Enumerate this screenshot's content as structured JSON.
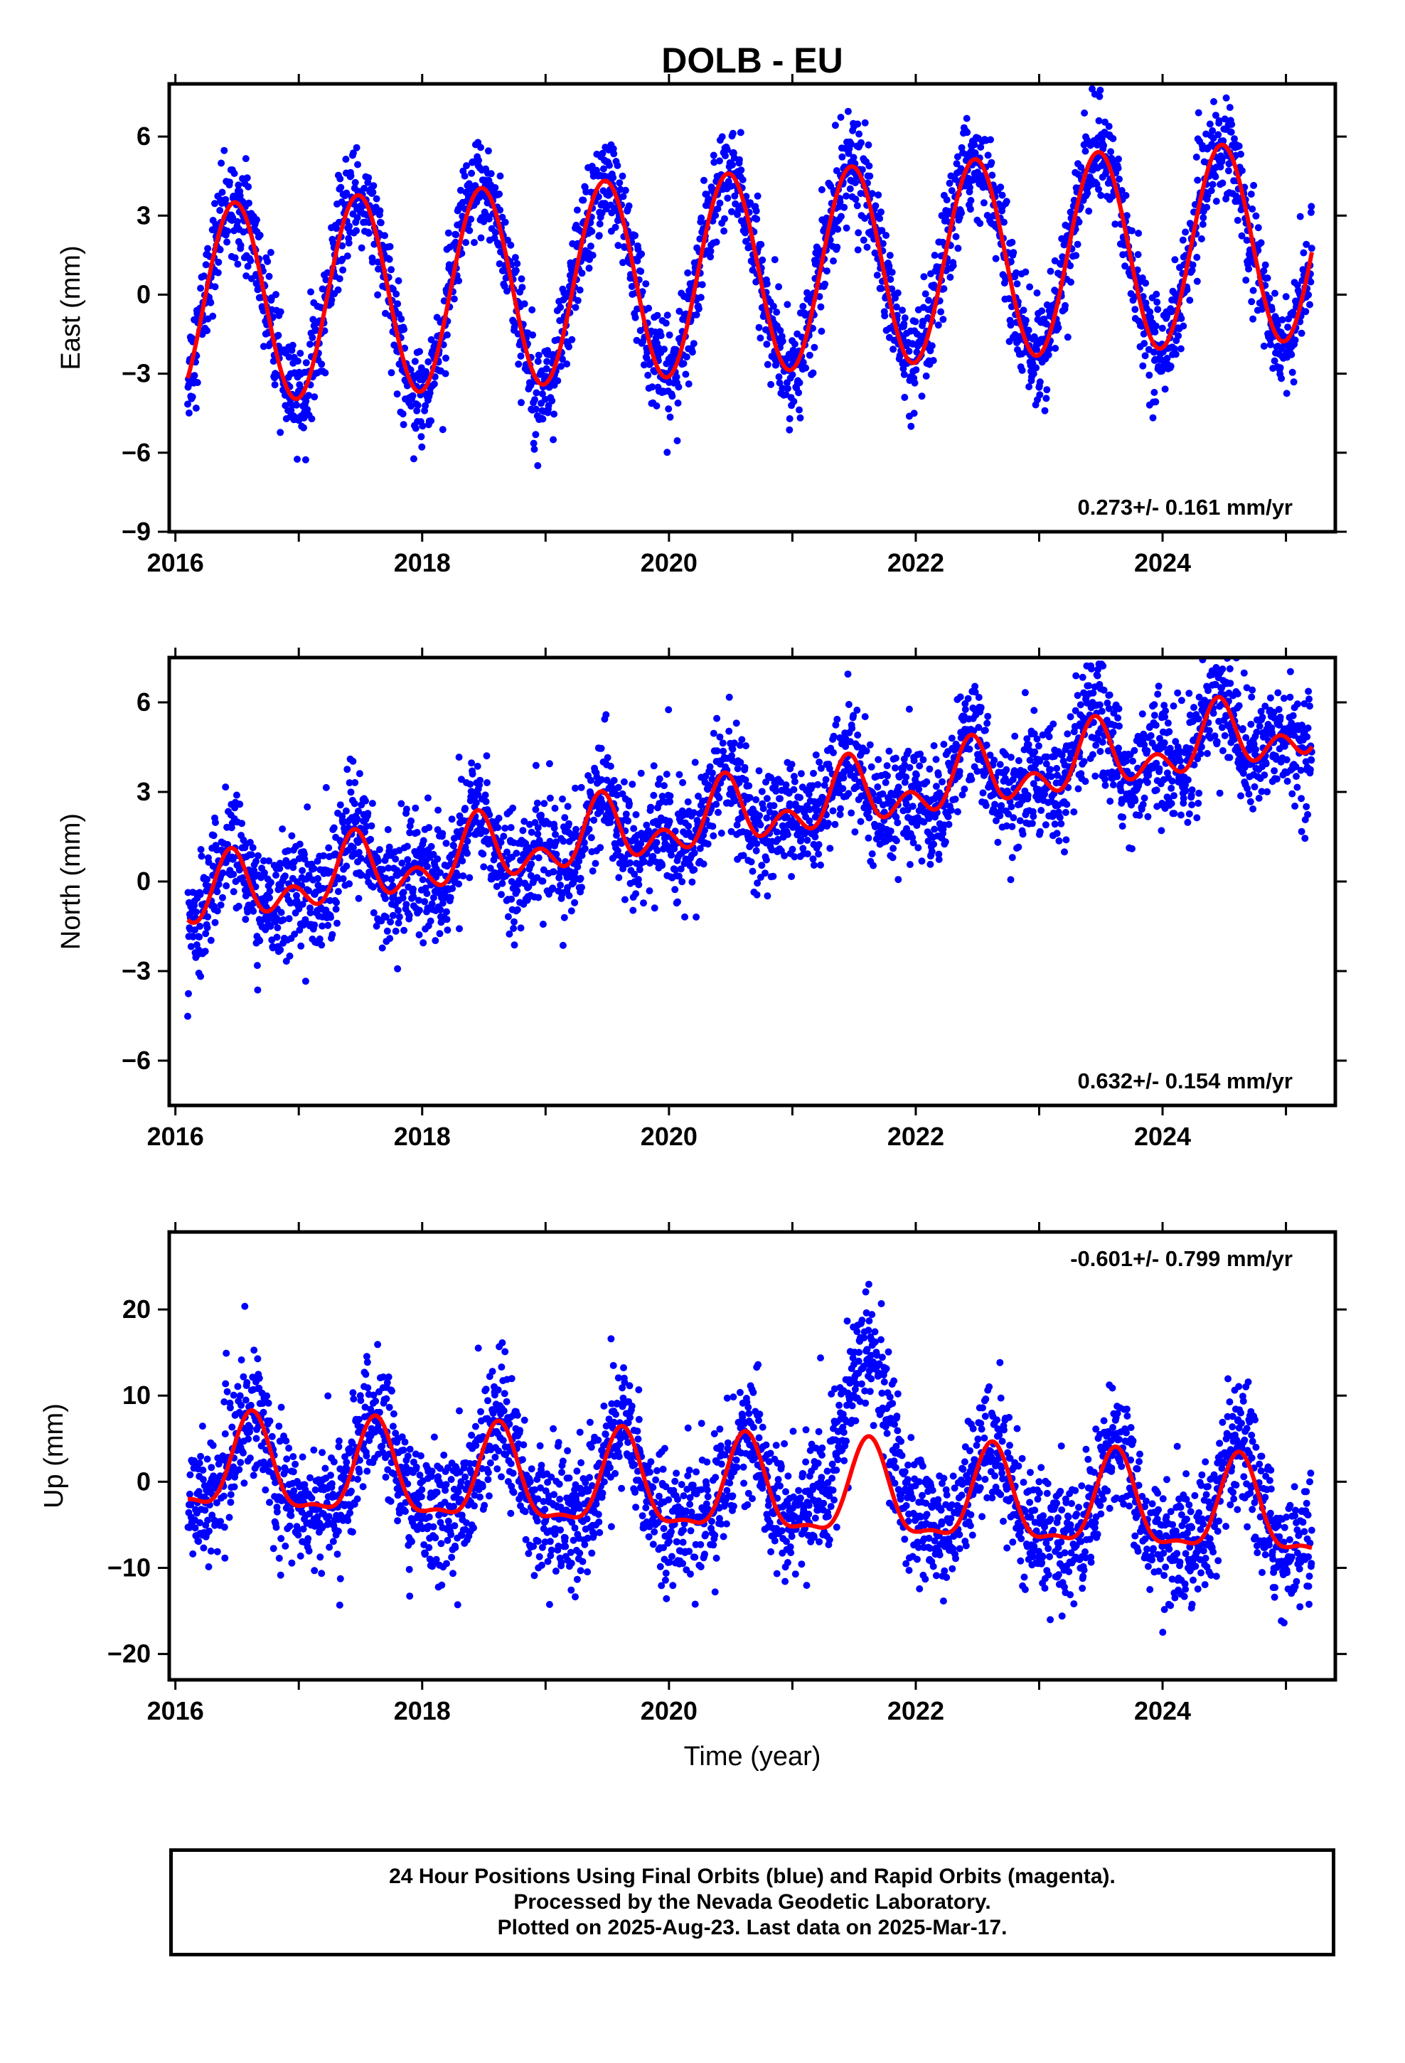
{
  "page_title": "DOLB - EU",
  "footer": {
    "line1": "24 Hour Positions Using Final Orbits (blue) and Rapid Orbits (magenta).",
    "line2": "Processed by the Nevada Geodetic Laboratory.",
    "line3": "Plotted on 2025-Aug-23. Last data on 2025-Mar-17."
  },
  "colors": {
    "points": "#0000ff",
    "model": "#ff0000",
    "axis": "#000000"
  },
  "chart_data": [
    {
      "type": "scatter",
      "id": "east",
      "title": "DOLB - EU",
      "ylabel": "East (mm)",
      "xlabel": "",
      "xlim": [
        2015.95,
        2025.4
      ],
      "ylim": [
        -9,
        8
      ],
      "x_ticks": [
        2016,
        2018,
        2020,
        2022,
        2024
      ],
      "y_ticks": [
        -9,
        -6,
        -3,
        0,
        3,
        6
      ],
      "rate_label": "0.273+/- 0.161 mm/yr",
      "rate_position": "bottom-right",
      "time_range": [
        2016.1,
        2025.21
      ],
      "model": {
        "offset": -0.4,
        "trend_mm_per_yr": 0.273,
        "annual_amplitude": 3.8,
        "annual_peak": 0.48,
        "semiannual_amplitude": 0.0,
        "semiannual_peak": 0.0
      },
      "model_series_name": "",
      "points_series_name": "",
      "scatter_noise_sd": 0.95
    },
    {
      "type": "scatter",
      "id": "north",
      "ylabel": "North (mm)",
      "xlabel": "",
      "xlim": [
        2015.95,
        2025.4
      ],
      "ylim": [
        -7.5,
        7.5
      ],
      "x_ticks": [
        2016,
        2018,
        2020,
        2022,
        2024
      ],
      "y_ticks": [
        -6,
        -3,
        0,
        3,
        6
      ],
      "rate_label": "0.632+/- 0.154 mm/yr",
      "rate_position": "bottom-right",
      "time_range": [
        2016.1,
        2025.21
      ],
      "model": {
        "offset": -0.6,
        "trend_mm_per_yr": 0.632,
        "annual_amplitude": 0.8,
        "annual_peak": 0.45,
        "semiannual_amplitude": 0.7,
        "semiannual_peak": 0.45
      },
      "scatter_noise_sd": 0.95
    },
    {
      "type": "scatter",
      "id": "up",
      "ylabel": "Up (mm)",
      "xlabel": "Time (year)",
      "xlim": [
        2015.95,
        2025.4
      ],
      "ylim": [
        -23,
        29
      ],
      "x_ticks": [
        2016,
        2018,
        2020,
        2022,
        2024
      ],
      "y_ticks": [
        -20,
        -10,
        0,
        10,
        20
      ],
      "rate_label": "-0.601+/- 0.799 mm/yr",
      "rate_position": "top-right",
      "time_range": [
        2016.1,
        2025.21
      ],
      "model": {
        "offset": 1.5,
        "trend_mm_per_yr": -0.601,
        "annual_amplitude": 5.3,
        "annual_peak": 0.62,
        "semiannual_amplitude": 1.8,
        "semiannual_peak": 0.62
      },
      "scatter_noise_sd": 3.6,
      "anomaly": {
        "center": 2021.55,
        "width": 0.35,
        "amplitude": 10
      }
    }
  ]
}
